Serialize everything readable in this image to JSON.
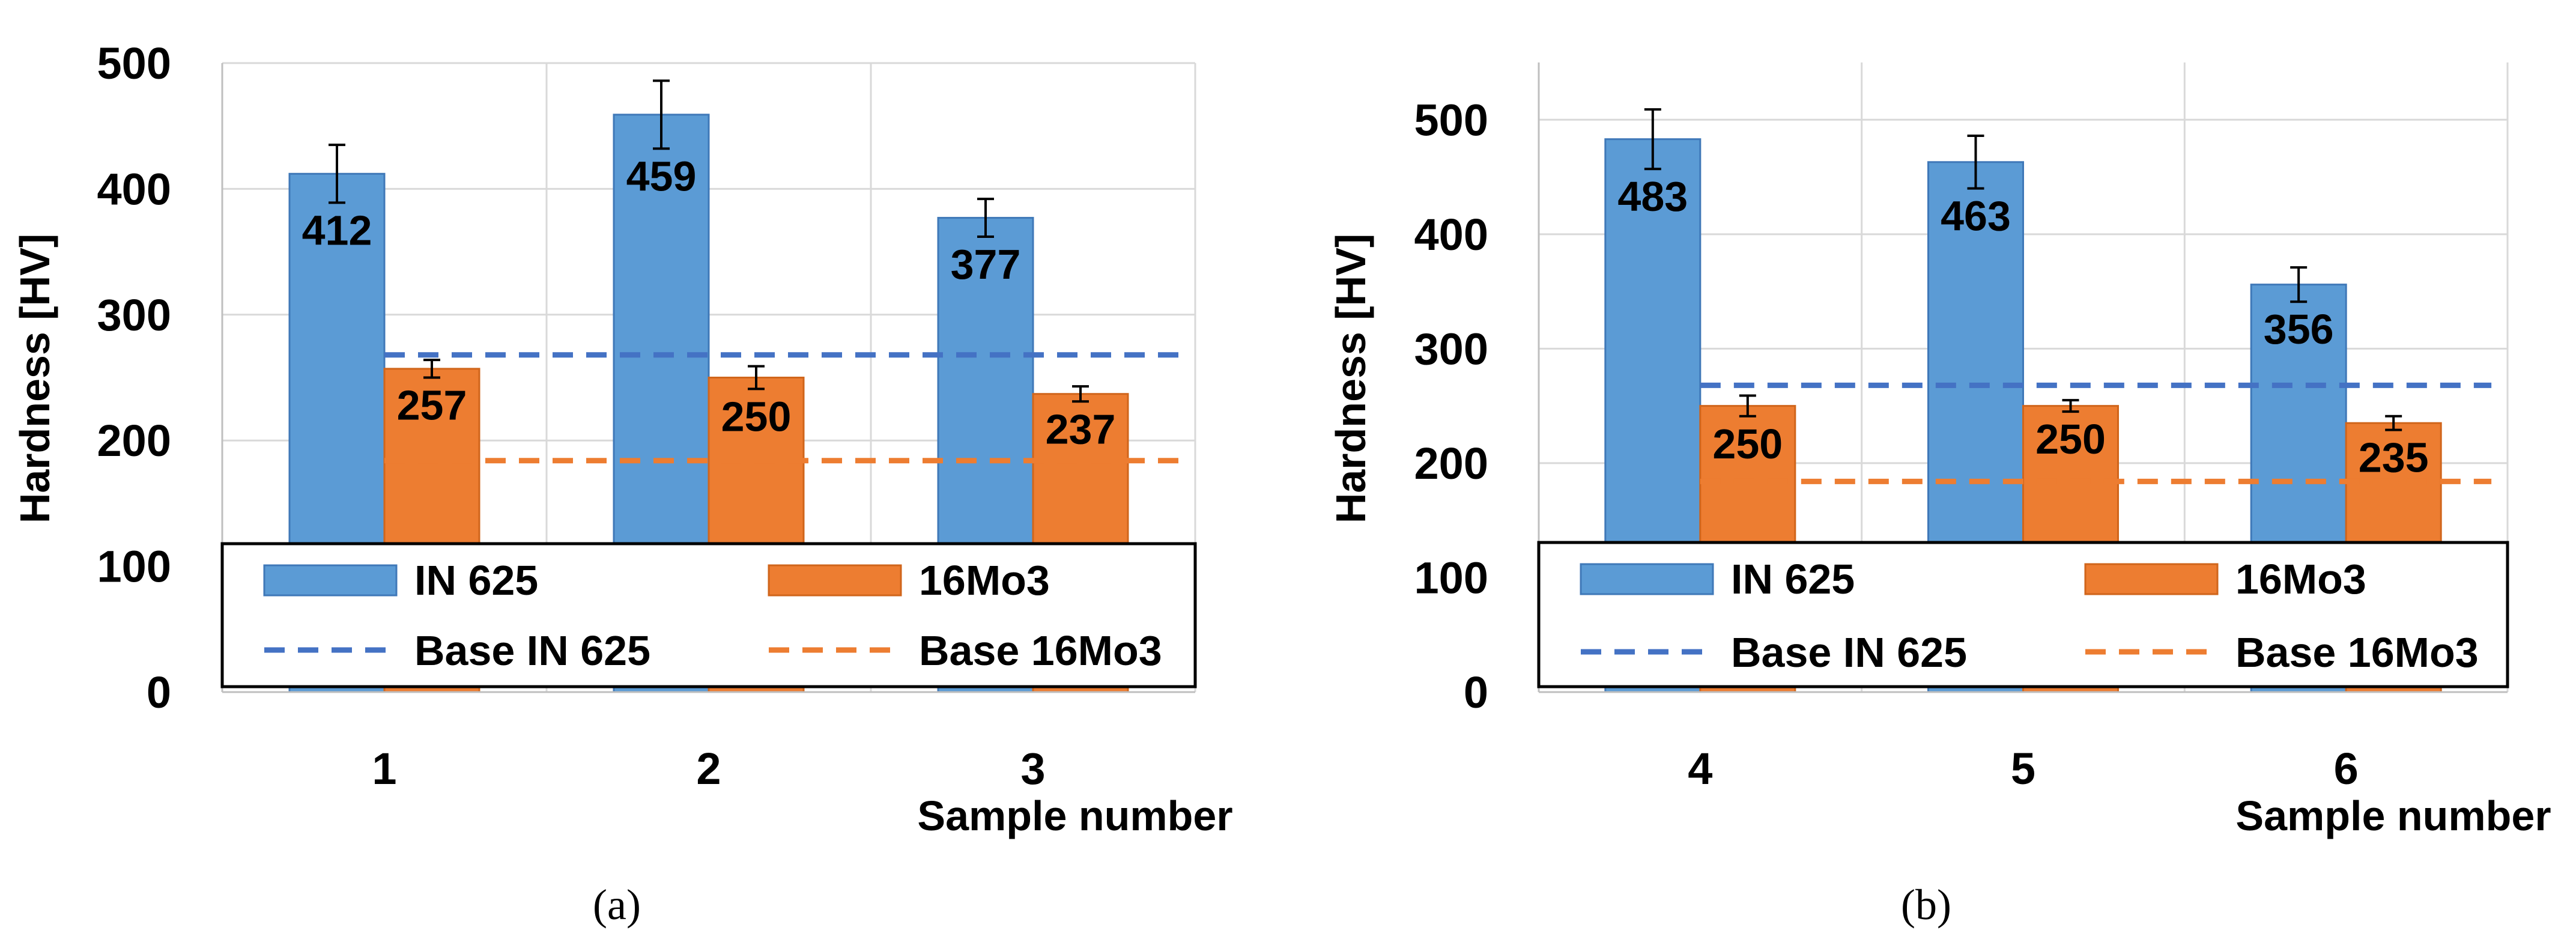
{
  "chart_data": [
    {
      "type": "bar",
      "panel_label": "(a)",
      "categories": [
        "1",
        "2",
        "3"
      ],
      "series": [
        {
          "name": "IN 625",
          "color": "#5b9bd5",
          "border": "#3f78b8",
          "values": [
            412,
            459,
            377
          ],
          "errors": [
            23,
            27,
            15
          ]
        },
        {
          "name": "16Mo3",
          "color": "#ed7d31",
          "border": "#d0651b",
          "values": [
            257,
            250,
            237
          ],
          "errors": [
            7,
            9,
            6
          ]
        }
      ],
      "reference_lines": [
        {
          "name": "Base IN 625",
          "value": 268,
          "color": "#4472c4"
        },
        {
          "name": "Base 16Mo3",
          "value": 184,
          "color": "#ed7d31"
        }
      ],
      "ylabel": "Hardness [HV]",
      "xlabel": "Sample number",
      "ylim": [
        0,
        500
      ],
      "yticks": [
        0,
        100,
        200,
        300,
        400,
        500
      ],
      "grid": true,
      "legend_position": "bottom"
    },
    {
      "type": "bar",
      "panel_label": "(b)",
      "categories": [
        "4",
        "5",
        "6"
      ],
      "series": [
        {
          "name": "IN 625",
          "color": "#5b9bd5",
          "border": "#3f78b8",
          "values": [
            483,
            463,
            356
          ],
          "errors": [
            26,
            23,
            15
          ]
        },
        {
          "name": "16Mo3",
          "color": "#ed7d31",
          "border": "#d0651b",
          "values": [
            250,
            250,
            235
          ],
          "errors": [
            9,
            5,
            6
          ]
        }
      ],
      "reference_lines": [
        {
          "name": "Base IN 625",
          "value": 268,
          "color": "#4472c4"
        },
        {
          "name": "Base 16Mo3",
          "value": 184,
          "color": "#ed7d31"
        }
      ],
      "ylabel": "Hardness [HV]",
      "xlabel": "Sample number",
      "ylim": [
        0,
        550
      ],
      "yticks": [
        0,
        100,
        200,
        300,
        400,
        500
      ],
      "grid": true,
      "legend_position": "bottom"
    }
  ]
}
